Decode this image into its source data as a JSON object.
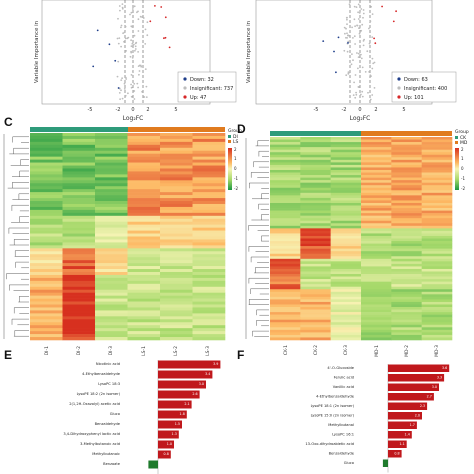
{
  "panels": {
    "A": {
      "xlabel": "Log₂FC",
      "ylabel": "Variable Importance in",
      "x_ticks": [
        "-5",
        "-2",
        "0",
        "2",
        "5"
      ],
      "legend": [
        {
          "label": "Down: 32",
          "color": "#1f3e8a"
        },
        {
          "label": "Insignificant: 737",
          "color": "#bdbdbd"
        },
        {
          "label": "Up: 47",
          "color": "#d62728"
        }
      ]
    },
    "B": {
      "xlabel": "Log₂FC",
      "ylabel": "Variable Importance in",
      "x_ticks": [
        "-5",
        "-2",
        "0",
        "2",
        "5"
      ],
      "legend": [
        {
          "label": "Down: 63",
          "color": "#1f3e8a"
        },
        {
          "label": "Insignificant: 400",
          "color": "#bdbdbd"
        },
        {
          "label": "Up: 101",
          "color": "#d62728"
        }
      ]
    },
    "C": {
      "letter": "C",
      "legend_title": "Group",
      "groups": [
        {
          "label": "DI",
          "color": "#2e9b7a"
        },
        {
          "label": "LS",
          "color": "#e07b1f"
        }
      ],
      "scale_ticks": [
        "2",
        "1",
        "0",
        "-1",
        "-2"
      ],
      "columns": [
        "DI-1",
        "DI-2",
        "DI-3",
        "LS-1",
        "LS-2",
        "LS-3"
      ]
    },
    "D": {
      "letter": "D",
      "legend_title": "Group",
      "groups": [
        {
          "label": "CK",
          "color": "#2e9b7a"
        },
        {
          "label": "MD",
          "color": "#e07b1f"
        }
      ],
      "scale_ticks": [
        "2",
        "1",
        "0",
        "-1",
        "-2"
      ],
      "columns": [
        "CK-1",
        "CK-2",
        "CK-3",
        "MD-1",
        "MD-2",
        "MD-3"
      ]
    },
    "E": {
      "letter": "E",
      "bars": [
        {
          "label": "Nicotinic acid",
          "value": 3.9
        },
        {
          "label": "4-Ethylbenzaldehyde",
          "value": 3.4
        },
        {
          "label": "LysoPC 18:3",
          "value": 3.0
        },
        {
          "label": "LysoPE 18:2 (2n isomer)",
          "value": 2.6
        },
        {
          "label": "2(1,2H-Oxazolyl) acetic acid",
          "value": 2.1
        },
        {
          "label": "Gluco",
          "value": 1.8
        },
        {
          "label": "Benzaldehyde",
          "value": 1.5
        },
        {
          "label": "3,4-Dihydroxyphenyl lactic acid",
          "value": 1.3
        },
        {
          "label": "3-Methylbutanoic acid",
          "value": 1.0
        },
        {
          "label": "Methylbutanoic",
          "value": 0.8
        },
        {
          "label": "Benzoate",
          "value": -0.6
        }
      ]
    },
    "F": {
      "letter": "F",
      "bars": [
        {
          "label": "4'-O-Glucoside",
          "value": 3.6
        },
        {
          "label": "Ferulic acid",
          "value": 3.3
        },
        {
          "label": "Vanillic acid",
          "value": 3.0
        },
        {
          "label": "4-Ethylbenzaldehyde",
          "value": 2.7
        },
        {
          "label": "LysoPE 18:1 (2n isomer)",
          "value": 2.3
        },
        {
          "label": "LysoPE 15:0 (2n isomer)",
          "value": 2.0
        },
        {
          "label": "Methylbutanal",
          "value": 1.7
        },
        {
          "label": "LysoPC 16:1",
          "value": 1.4
        },
        {
          "label": "13-Oxo-dihydroabietic acid",
          "value": 1.1
        },
        {
          "label": "Benzaldehyde",
          "value": 0.8
        },
        {
          "label": "Gluco",
          "value": -0.3
        }
      ]
    }
  }
}
